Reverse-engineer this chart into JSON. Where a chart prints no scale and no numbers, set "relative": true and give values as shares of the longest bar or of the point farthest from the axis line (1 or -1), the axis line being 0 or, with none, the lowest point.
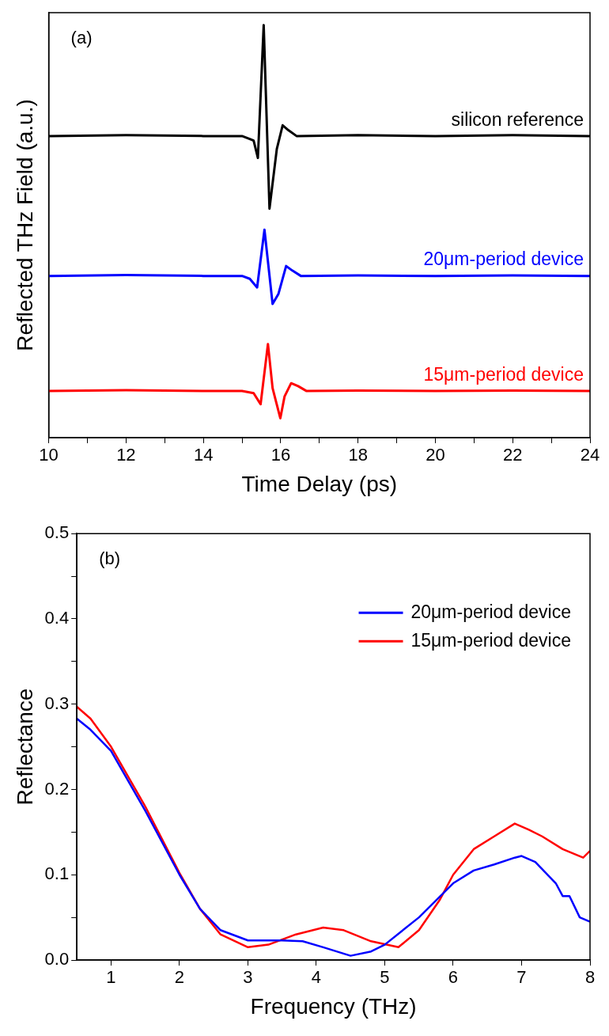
{
  "chart_data": [
    {
      "type": "line",
      "xlabel": "Time Delay (ps)",
      "ylabel": "Reflected THz Field (a.u.)",
      "annotations": [
        "(a)"
      ],
      "relative": true,
      "xlim": [
        10,
        24
      ],
      "xticks": [
        10,
        {
          "value": 11,
          "label": null
        },
        12,
        {
          "value": 13,
          "label": null
        },
        14,
        {
          "value": 15,
          "label": null
        },
        16,
        {
          "value": 17,
          "label": null
        },
        18,
        {
          "value": 19,
          "label": null
        },
        20,
        {
          "value": 21,
          "label": null
        },
        22,
        {
          "value": 23,
          "label": null
        },
        24
      ],
      "grid": false,
      "legend": false,
      "marker": "none",
      "line_style": "solid",
      "series": [
        {
          "name": "silicon reference",
          "color": "#000000",
          "x": [
            10,
            12,
            14,
            15,
            15.2,
            15.3,
            15.41,
            15.56,
            15.71,
            15.9,
            16.05,
            16.2,
            16.41,
            18,
            20,
            22,
            24
          ],
          "values": [
            0.731,
            0.733,
            0.731,
            0.731,
            0.724,
            0.72,
            0.678,
            1.0,
            0.555,
            0.7,
            0.757,
            0.745,
            0.731,
            0.733,
            0.731,
            0.733,
            0.731
          ]
        },
        {
          "name": "20μm-period device",
          "color": "#0000ff",
          "x": [
            10,
            12,
            14,
            15,
            15.2,
            15.39,
            15.58,
            15.79,
            15.94,
            16.14,
            16.3,
            16.52,
            18,
            20,
            22,
            24
          ],
          "values": [
            0.392,
            0.394,
            0.392,
            0.392,
            0.385,
            0.364,
            0.504,
            0.324,
            0.348,
            0.416,
            0.405,
            0.392,
            0.393,
            0.392,
            0.393,
            0.392
          ]
        },
        {
          "name": "15μm-period device",
          "color": "#ff0000",
          "x": [
            10,
            12,
            14,
            15,
            15.3,
            15.48,
            15.67,
            15.79,
            15.99,
            16.1,
            16.27,
            16.45,
            16.67,
            18,
            20,
            22,
            24
          ],
          "values": [
            0.113,
            0.115,
            0.113,
            0.113,
            0.108,
            0.081,
            0.227,
            0.12,
            0.047,
            0.1,
            0.132,
            0.125,
            0.113,
            0.114,
            0.113,
            0.114,
            0.113
          ]
        }
      ]
    },
    {
      "type": "line",
      "xlabel": "Frequency (THz)",
      "ylabel": "Reflectance",
      "annotations": [
        "(b)"
      ],
      "xlim": [
        0.5,
        8
      ],
      "xticks": [
        1,
        2,
        3,
        4,
        5,
        6,
        7,
        8
      ],
      "ylim": [
        0,
        0.5
      ],
      "yticks": [
        {
          "value": 0,
          "label": "0.0"
        },
        {
          "value": 0.05,
          "label": null
        },
        0.1,
        {
          "value": 0.15,
          "label": null
        },
        0.2,
        {
          "value": 0.25,
          "label": null
        },
        0.3,
        {
          "value": 0.35,
          "label": null
        },
        0.4,
        {
          "value": 0.45,
          "label": null
        },
        0.5
      ],
      "grid": false,
      "legend": "top right",
      "marker": "none",
      "line_style": "solid",
      "series": [
        {
          "name": "20μm-period device",
          "color": "#0000ff",
          "x": [
            0.5,
            0.7,
            1,
            1.5,
            2,
            2.3,
            2.6,
            3,
            3.5,
            3.8,
            4.1,
            4.5,
            4.8,
            5,
            5.5,
            6,
            6.3,
            6.6,
            6.9,
            7,
            7.2,
            7.5,
            7.6,
            7.7,
            7.85,
            8
          ],
          "values": [
            0.283,
            0.27,
            0.245,
            0.175,
            0.1,
            0.06,
            0.035,
            0.023,
            0.023,
            0.022,
            0.015,
            0.005,
            0.01,
            0.018,
            0.05,
            0.09,
            0.105,
            0.112,
            0.12,
            0.122,
            0.115,
            0.09,
            0.075,
            0.075,
            0.05,
            0.045
          ]
        },
        {
          "name": "15μm-period device",
          "color": "#ff0000",
          "x": [
            0.5,
            0.7,
            1,
            1.5,
            2,
            2.3,
            2.6,
            3,
            3.3,
            3.7,
            4.1,
            4.4,
            4.8,
            5.2,
            5.5,
            5.8,
            6,
            6.3,
            6.6,
            6.9,
            7.1,
            7.3,
            7.6,
            7.9,
            8
          ],
          "values": [
            0.297,
            0.283,
            0.25,
            0.18,
            0.102,
            0.06,
            0.03,
            0.015,
            0.018,
            0.03,
            0.038,
            0.035,
            0.022,
            0.015,
            0.035,
            0.07,
            0.1,
            0.13,
            0.145,
            0.16,
            0.153,
            0.145,
            0.13,
            0.12,
            0.128
          ]
        }
      ]
    }
  ]
}
